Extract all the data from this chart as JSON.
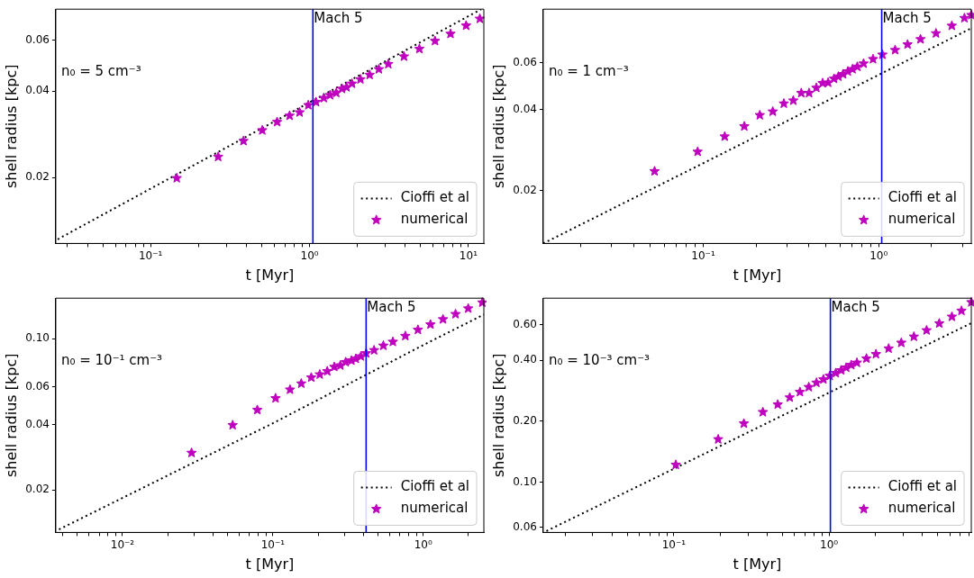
{
  "chart_data": [
    {
      "type": "line",
      "xlabel": "t [Myr]",
      "ylabel": "shell radius [kpc]",
      "log": "xy",
      "grid": false,
      "legend": "bottom right",
      "xlim": [
        0.0253,
        12.5
      ],
      "ylim": [
        0.0118,
        0.077
      ],
      "xticks": [
        {
          "value": 0.03,
          "label": null
        },
        {
          "value": 0.04,
          "label": null
        },
        {
          "value": 0.05,
          "label": null
        },
        {
          "value": 0.06,
          "label": null
        },
        {
          "value": 0.07,
          "label": null
        },
        {
          "value": 0.08,
          "label": null
        },
        {
          "value": 0.09,
          "label": null
        },
        {
          "value": 0.1,
          "label": "10⁻¹"
        },
        {
          "value": 0.2,
          "label": null
        },
        {
          "value": 0.3,
          "label": null
        },
        {
          "value": 0.4,
          "label": null
        },
        {
          "value": 0.5,
          "label": null
        },
        {
          "value": 0.6,
          "label": null
        },
        {
          "value": 0.7,
          "label": null
        },
        {
          "value": 0.8,
          "label": null
        },
        {
          "value": 0.9,
          "label": null
        },
        {
          "value": 1,
          "label": "10⁰"
        },
        {
          "value": 2,
          "label": null
        },
        {
          "value": 3,
          "label": null
        },
        {
          "value": 4,
          "label": null
        },
        {
          "value": 5,
          "label": null
        },
        {
          "value": 6,
          "label": null
        },
        {
          "value": 7,
          "label": null
        },
        {
          "value": 8,
          "label": null
        },
        {
          "value": 9,
          "label": null
        },
        {
          "value": 10,
          "label": "10¹"
        }
      ],
      "yticks": [
        0.02,
        0.04,
        0.06
      ],
      "annotations": [
        "n₀ = 5 cm⁻³"
      ],
      "ref_lines": [
        {
          "axis": "x",
          "value": 1.05,
          "label": "Mach 5",
          "color": "#0000ff"
        }
      ],
      "series": [
        {
          "name": "Cioffi et al",
          "type": "line",
          "color": "#000000",
          "line_style": "dotted",
          "marker": "none",
          "x": [
            0.026,
            0.1,
            1,
            12
          ],
          "values": [
            0.0122,
            0.0183,
            0.0365,
            0.0769
          ]
        },
        {
          "name": "numerical",
          "type": "scatter",
          "color": "#bf00bf",
          "marker": "star",
          "x": [
            0.146,
            0.266,
            0.384,
            0.504,
            0.625,
            0.749,
            0.866,
            0.982,
            1.099,
            1.23,
            1.346,
            1.473,
            1.6,
            1.71,
            1.85,
            2.09,
            2.39,
            2.73,
            3.13,
            3.93,
            4.91,
            6.16,
            7.71,
            9.67,
            11.8
          ],
          "values": [
            0.0199,
            0.0236,
            0.0268,
            0.0292,
            0.0312,
            0.0328,
            0.0337,
            0.0357,
            0.0366,
            0.0378,
            0.0387,
            0.0394,
            0.0407,
            0.0412,
            0.0424,
            0.0439,
            0.0455,
            0.0476,
            0.0496,
            0.0527,
            0.056,
            0.0597,
            0.0632,
            0.0675,
            0.0713
          ]
        }
      ]
    },
    {
      "type": "line",
      "xlabel": "t [Myr]",
      "ylabel": "shell radius [kpc]",
      "log": "xy",
      "grid": false,
      "legend": "bottom right",
      "xlim": [
        0.01225,
        3.37
      ],
      "ylim": [
        0.0127,
        0.0949
      ],
      "xticks": [
        {
          "value": 0.02,
          "label": null
        },
        {
          "value": 0.03,
          "label": null
        },
        {
          "value": 0.04,
          "label": null
        },
        {
          "value": 0.05,
          "label": null
        },
        {
          "value": 0.06,
          "label": null
        },
        {
          "value": 0.07,
          "label": null
        },
        {
          "value": 0.08,
          "label": null
        },
        {
          "value": 0.09,
          "label": null
        },
        {
          "value": 0.1,
          "label": "10⁻¹"
        },
        {
          "value": 0.2,
          "label": null
        },
        {
          "value": 0.3,
          "label": null
        },
        {
          "value": 0.4,
          "label": null
        },
        {
          "value": 0.5,
          "label": null
        },
        {
          "value": 0.6,
          "label": null
        },
        {
          "value": 0.7,
          "label": null
        },
        {
          "value": 0.8,
          "label": null
        },
        {
          "value": 0.9,
          "label": null
        },
        {
          "value": 1,
          "label": "10⁰"
        },
        {
          "value": 2,
          "label": null
        },
        {
          "value": 3,
          "label": null
        }
      ],
      "yticks": [
        0.02,
        0.04,
        0.06
      ],
      "annotations": [
        "n₀ = 1 cm⁻³"
      ],
      "ref_lines": [
        {
          "axis": "x",
          "value": 1.04,
          "label": "Mach 5",
          "color": "#0000ff"
        }
      ],
      "series": [
        {
          "name": "Cioffi et al",
          "type": "line",
          "color": "#000000",
          "line_style": "dotted",
          "marker": "none",
          "x": [
            0.01225,
            0.1,
            1,
            3.37
          ],
          "values": [
            0.0127,
            0.0253,
            0.054,
            0.0806
          ]
        },
        {
          "name": "numerical",
          "type": "scatter",
          "color": "#bf00bf",
          "marker": "star",
          "x": [
            0.0528,
            0.0929,
            0.1325,
            0.1714,
            0.21,
            0.249,
            0.288,
            0.326,
            0.362,
            0.401,
            0.441,
            0.479,
            0.515,
            0.556,
            0.589,
            0.626,
            0.667,
            0.709,
            0.755,
            0.82,
            0.928,
            1.05,
            1.24,
            1.46,
            1.73,
            2.12,
            2.61,
            3.08,
            3.37
          ],
          "values": [
            0.0236,
            0.0279,
            0.0318,
            0.0347,
            0.0382,
            0.0394,
            0.0422,
            0.0433,
            0.0462,
            0.0462,
            0.0483,
            0.0503,
            0.0505,
            0.0522,
            0.0532,
            0.0543,
            0.0556,
            0.0567,
            0.0579,
            0.0595,
            0.0618,
            0.0642,
            0.0668,
            0.0701,
            0.0733,
            0.0771,
            0.0823,
            0.0879,
            0.0902
          ]
        }
      ]
    },
    {
      "type": "line",
      "xlabel": "t [Myr]",
      "ylabel": "shell radius [kpc]",
      "log": "xy",
      "grid": false,
      "legend": "bottom right",
      "xlim": [
        0.0036,
        2.53
      ],
      "ylim": [
        0.01274,
        0.154
      ],
      "xticks": [
        {
          "value": 0.004,
          "label": null
        },
        {
          "value": 0.005,
          "label": null
        },
        {
          "value": 0.006,
          "label": null
        },
        {
          "value": 0.007,
          "label": null
        },
        {
          "value": 0.008,
          "label": null
        },
        {
          "value": 0.009,
          "label": null
        },
        {
          "value": 0.01,
          "label": "10⁻²"
        },
        {
          "value": 0.02,
          "label": null
        },
        {
          "value": 0.03,
          "label": null
        },
        {
          "value": 0.04,
          "label": null
        },
        {
          "value": 0.05,
          "label": null
        },
        {
          "value": 0.06,
          "label": null
        },
        {
          "value": 0.07,
          "label": null
        },
        {
          "value": 0.08,
          "label": null
        },
        {
          "value": 0.09,
          "label": null
        },
        {
          "value": 0.1,
          "label": "10⁻¹"
        },
        {
          "value": 0.2,
          "label": null
        },
        {
          "value": 0.3,
          "label": null
        },
        {
          "value": 0.4,
          "label": null
        },
        {
          "value": 0.5,
          "label": null
        },
        {
          "value": 0.6,
          "label": null
        },
        {
          "value": 0.7,
          "label": null
        },
        {
          "value": 0.8,
          "label": null
        },
        {
          "value": 0.9,
          "label": null
        },
        {
          "value": 1,
          "label": "10⁰"
        },
        {
          "value": 2,
          "label": null
        }
      ],
      "yticks": [
        0.02,
        0.04,
        0.06,
        {
          "value": 0.1,
          "label": "0.10"
        }
      ],
      "annotations": [
        "n₀ = 10⁻¹ cm⁻³"
      ],
      "ref_lines": [
        {
          "axis": "x",
          "value": 0.417,
          "label": "Mach 5",
          "color": "#0000ff"
        }
      ],
      "series": [
        {
          "name": "Cioffi et al",
          "type": "line",
          "color": "#000000",
          "line_style": "dotted",
          "marker": "none",
          "x": [
            0.00378,
            0.1,
            1,
            2.53
          ],
          "values": [
            0.01315,
            0.0407,
            0.0935,
            0.1294
          ]
        },
        {
          "name": "numerical",
          "type": "scatter",
          "color": "#bf00bf",
          "marker": "star",
          "x": [
            0.0288,
            0.054,
            0.0788,
            0.1042,
            0.13,
            0.1545,
            0.18,
            0.205,
            0.23,
            0.256,
            0.281,
            0.305,
            0.333,
            0.356,
            0.385,
            0.417,
            0.471,
            0.543,
            0.628,
            0.76,
            0.922,
            1.117,
            1.353,
            1.64,
            1.99,
            2.47
          ],
          "values": [
            0.0297,
            0.0399,
            0.0469,
            0.0531,
            0.0582,
            0.0621,
            0.0662,
            0.0684,
            0.0708,
            0.0741,
            0.0753,
            0.078,
            0.0793,
            0.0808,
            0.0829,
            0.0857,
            0.0885,
            0.0929,
            0.0968,
            0.103,
            0.11,
            0.1164,
            0.123,
            0.13,
            0.138,
            0.147
          ]
        }
      ]
    },
    {
      "type": "line",
      "xlabel": "t [Myr]",
      "ylabel": "shell radius [kpc]",
      "log": "xy",
      "grid": false,
      "legend": "bottom right",
      "xlim": [
        0.0144,
        8.25
      ],
      "ylim": [
        0.0566,
        0.81
      ],
      "xticks": [
        {
          "value": 0.02,
          "label": null
        },
        {
          "value": 0.03,
          "label": null
        },
        {
          "value": 0.04,
          "label": null
        },
        {
          "value": 0.05,
          "label": null
        },
        {
          "value": 0.06,
          "label": null
        },
        {
          "value": 0.07,
          "label": null
        },
        {
          "value": 0.08,
          "label": null
        },
        {
          "value": 0.09,
          "label": null
        },
        {
          "value": 0.1,
          "label": "10⁻¹"
        },
        {
          "value": 0.2,
          "label": null
        },
        {
          "value": 0.3,
          "label": null
        },
        {
          "value": 0.4,
          "label": null
        },
        {
          "value": 0.5,
          "label": null
        },
        {
          "value": 0.6,
          "label": null
        },
        {
          "value": 0.7,
          "label": null
        },
        {
          "value": 0.8,
          "label": null
        },
        {
          "value": 0.9,
          "label": null
        },
        {
          "value": 1,
          "label": "10⁰"
        },
        {
          "value": 2,
          "label": null
        },
        {
          "value": 3,
          "label": null
        },
        {
          "value": 4,
          "label": null
        },
        {
          "value": 5,
          "label": null
        },
        {
          "value": 6,
          "label": null
        },
        {
          "value": 7,
          "label": null
        },
        {
          "value": 8,
          "label": null
        }
      ],
      "yticks": [
        0.06,
        {
          "value": 0.1,
          "label": "0.10"
        },
        {
          "value": 0.2,
          "label": "0.20"
        },
        {
          "value": 0.4,
          "label": "0.40"
        },
        {
          "value": 0.6,
          "label": "0.60"
        }
      ],
      "annotations": [
        "n₀ = 10⁻³ cm⁻³"
      ],
      "ref_lines": [
        {
          "axis": "x",
          "value": 1.02,
          "label": "Mach 5",
          "color": "#0000ff"
        }
      ],
      "series": [
        {
          "name": "Cioffi et al",
          "type": "line",
          "color": "#000000",
          "line_style": "dotted",
          "marker": "none",
          "x": [
            0.0151,
            0.1,
            1,
            8.25
          ],
          "values": [
            0.0575,
            0.1167,
            0.277,
            0.61
          ]
        },
        {
          "name": "numerical",
          "type": "scatter",
          "color": "#bf00bf",
          "marker": "star",
          "x": [
            0.1029,
            0.193,
            0.2825,
            0.3745,
            0.467,
            0.558,
            0.649,
            0.74,
            0.829,
            0.919,
            1.01,
            1.104,
            1.196,
            1.289,
            1.39,
            1.512,
            1.741,
            2.005,
            2.42,
            2.92,
            3.52,
            4.25,
            5.13,
            6.19,
            7.13,
            8.25
          ],
          "values": [
            0.122,
            0.163,
            0.195,
            0.222,
            0.242,
            0.262,
            0.279,
            0.295,
            0.31,
            0.322,
            0.335,
            0.346,
            0.357,
            0.368,
            0.379,
            0.389,
            0.408,
            0.429,
            0.457,
            0.488,
            0.523,
            0.562,
            0.608,
            0.656,
            0.702,
            0.773
          ]
        }
      ]
    }
  ]
}
